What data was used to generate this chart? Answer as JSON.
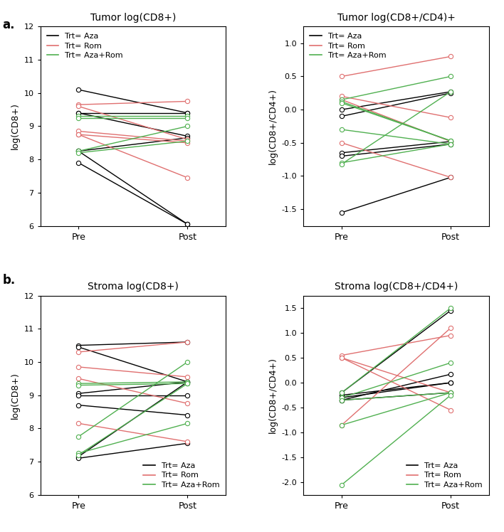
{
  "tumor_cd8": {
    "title": "Tumor log(CD8+)",
    "ylabel": "log(CD8+)",
    "ylim": [
      6,
      12
    ],
    "yticks": [
      6,
      7,
      8,
      9,
      10,
      11,
      12
    ],
    "aza": {
      "pre": [
        10.1,
        9.4,
        9.4,
        8.25,
        8.25,
        7.9
      ],
      "post": [
        9.4,
        9.4,
        8.7,
        8.65,
        6.05,
        6.05
      ]
    },
    "rom": {
      "pre": [
        9.65,
        9.6,
        8.85,
        8.75,
        8.75
      ],
      "post": [
        9.75,
        8.6,
        8.55,
        8.5,
        7.45
      ]
    },
    "azarom": {
      "pre": [
        9.3,
        9.25,
        8.25,
        8.2
      ],
      "post": [
        9.3,
        9.25,
        9.0,
        8.55
      ]
    }
  },
  "tumor_ratio": {
    "title": "Tumor log(CD8+/CD4)+",
    "ylabel": "log(CD8+/CD4+)",
    "ylim": [
      -1.75,
      1.25
    ],
    "yticks": [
      -1.5,
      -1.0,
      -0.5,
      0.0,
      0.5,
      1.0
    ],
    "aza": {
      "pre": [
        0.0,
        -0.1,
        -0.65,
        -0.7,
        -1.55
      ],
      "post": [
        0.27,
        0.25,
        -0.48,
        -0.52,
        -1.02
      ]
    },
    "rom": {
      "pre": [
        0.5,
        0.2,
        0.15,
        -0.5
      ],
      "post": [
        0.8,
        -0.12,
        -0.48,
        -1.02
      ]
    },
    "azarom": {
      "pre": [
        0.15,
        0.12,
        0.1,
        -0.3,
        -0.8,
        -0.82
      ],
      "post": [
        0.5,
        -0.47,
        -0.47,
        -0.52,
        -0.52,
        0.27
      ]
    }
  },
  "stroma_cd8": {
    "title": "Stroma log(CD8+)",
    "ylabel": "log(CD8+)",
    "ylim": [
      6,
      12
    ],
    "yticks": [
      6,
      7,
      8,
      9,
      10,
      11,
      12
    ],
    "aza": {
      "pre": [
        10.5,
        10.45,
        9.05,
        9.0,
        8.7,
        7.15,
        7.1
      ],
      "post": [
        10.6,
        9.4,
        9.4,
        9.0,
        8.4,
        9.4,
        7.55
      ]
    },
    "rom": {
      "pre": [
        10.3,
        9.85,
        9.5,
        8.15
      ],
      "post": [
        10.6,
        9.55,
        8.75,
        7.6
      ]
    },
    "azarom": {
      "pre": [
        9.35,
        9.3,
        7.75,
        7.25,
        7.2
      ],
      "post": [
        9.4,
        9.35,
        10.0,
        8.15,
        9.35
      ]
    }
  },
  "stroma_ratio": {
    "title": "Stroma log(CD8+/CD4+)",
    "ylabel": "log(CD8+/CD4+)",
    "ylim": [
      -2.25,
      1.75
    ],
    "yticks": [
      -2.0,
      -1.5,
      -1.0,
      -0.5,
      0.0,
      0.5,
      1.0,
      1.5
    ],
    "aza": {
      "pre": [
        -0.2,
        -0.25,
        -0.3,
        -0.35,
        -0.35
      ],
      "post": [
        1.45,
        0.0,
        0.0,
        -0.2,
        0.17
      ]
    },
    "rom": {
      "pre": [
        0.55,
        0.5,
        0.5,
        -0.85
      ],
      "post": [
        0.95,
        -0.55,
        -0.2,
        1.1
      ]
    },
    "azarom": {
      "pre": [
        -0.2,
        -0.3,
        -0.35,
        -0.85,
        -2.05
      ],
      "post": [
        1.5,
        0.4,
        -0.2,
        -0.2,
        -0.25
      ]
    }
  },
  "colors": {
    "aza": "#000000",
    "rom": "#e07070",
    "azarom": "#50b050"
  },
  "legend_labels": [
    "Trt= Aza",
    "Trt= Rom",
    "Trt= Aza+Rom"
  ],
  "panel_labels": [
    "a.",
    "b."
  ]
}
